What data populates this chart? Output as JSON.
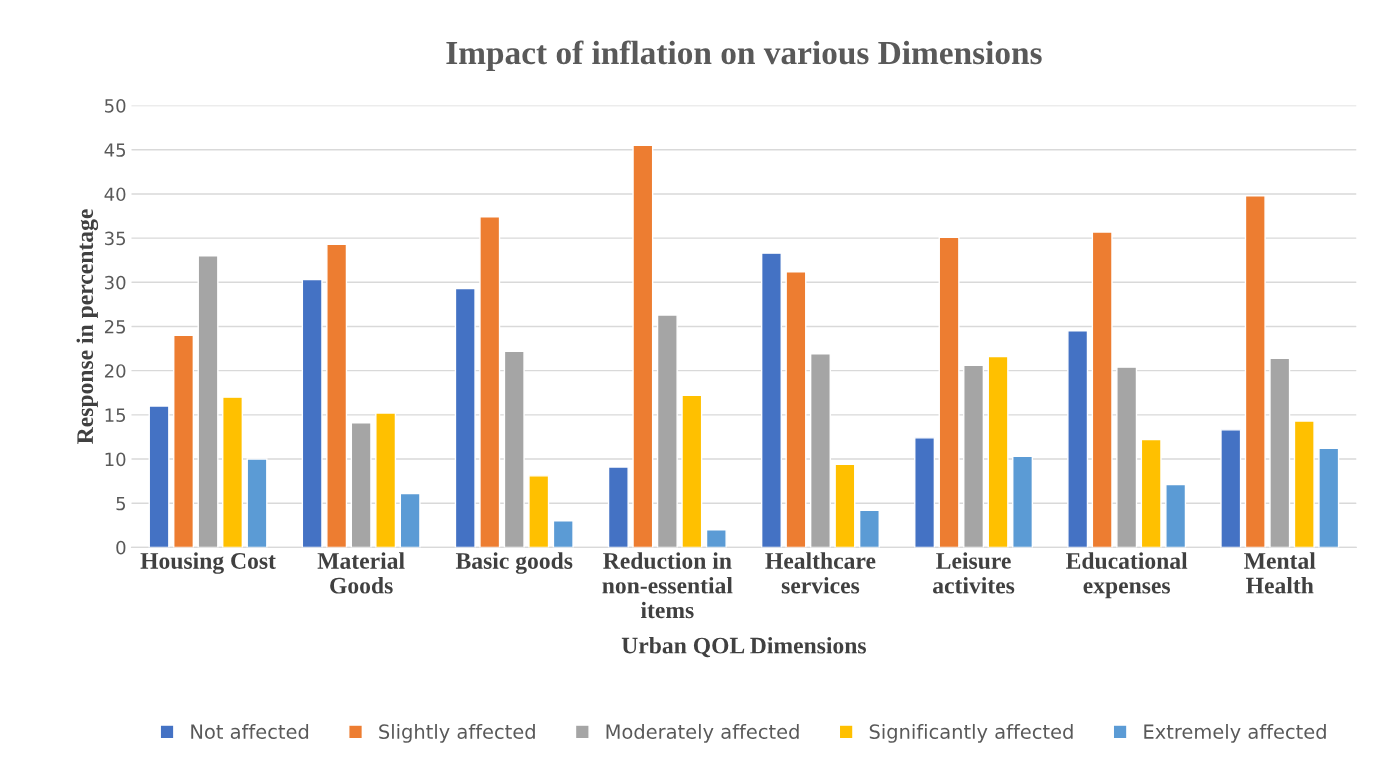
{
  "chart_data": {
    "type": "bar",
    "title": "Impact of inflation on various Dimensions",
    "xlabel": "Urban QOL Dimensions",
    "ylabel": "Response in percentage",
    "categories": [
      "Housing Cost",
      "Material Goods",
      "Basic goods",
      "Reduction in non-essential items",
      "Healthcare services",
      "Leisure activites",
      "Educational expenses",
      "Mental Health"
    ],
    "series": [
      {
        "name": "Not affected",
        "color": "#4472c4",
        "values": [
          16,
          30.3,
          29.3,
          9.1,
          33.3,
          12.4,
          24.5,
          13.3
        ]
      },
      {
        "name": "Slightly affected",
        "color": "#ed7d31",
        "values": [
          24,
          34.3,
          37.4,
          45.5,
          31.2,
          35.1,
          35.7,
          39.8
        ]
      },
      {
        "name": "Moderately affected",
        "color": "#a5a5a5",
        "values": [
          33,
          14.1,
          22.2,
          26.3,
          21.9,
          20.6,
          20.4,
          21.4
        ]
      },
      {
        "name": "Significantly affected",
        "color": "#ffc000",
        "values": [
          17,
          15.2,
          8.1,
          17.2,
          9.4,
          21.6,
          12.2,
          14.3
        ]
      },
      {
        "name": "Extremely affected",
        "color": "#5b9bd5",
        "values": [
          10,
          6.1,
          3.0,
          2.0,
          4.2,
          10.3,
          7.1,
          11.2
        ]
      }
    ],
    "ylim": [
      0,
      50
    ],
    "yticks": [
      0,
      5,
      10,
      15,
      20,
      25,
      30,
      35,
      40,
      45,
      50
    ],
    "grid": "y",
    "legend": "bottom"
  }
}
